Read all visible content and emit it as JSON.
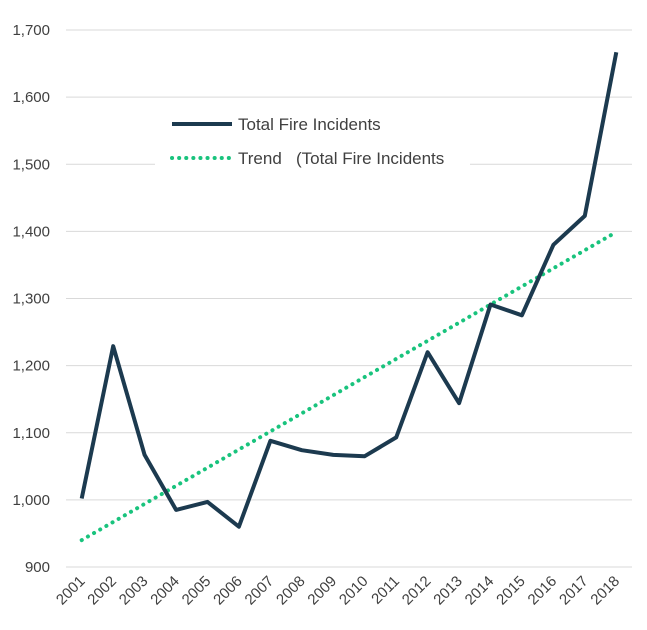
{
  "chart_data": {
    "type": "line",
    "title": "",
    "xlabel": "",
    "ylabel": "",
    "ylim": [
      900,
      1700
    ],
    "yticks": [
      900,
      1000,
      1100,
      1200,
      1300,
      1400,
      1500,
      1600,
      1700
    ],
    "ytick_labels": [
      "900",
      "1,000",
      "1,100",
      "1,200",
      "1,300",
      "1,400",
      "1,500",
      "1,600",
      "1,700"
    ],
    "categories": [
      "2001",
      "2002",
      "2003",
      "2004",
      "2005",
      "2006",
      "2007",
      "2008",
      "2009",
      "2010",
      "2011",
      "2012",
      "2013",
      "2014",
      "2015",
      "2016",
      "2017",
      "2018"
    ],
    "series": [
      {
        "name": "Total Fire Incidents",
        "color": "#1c3a4f",
        "style": "solid",
        "values": [
          1002,
          1229,
          1067,
          985,
          997,
          960,
          1088,
          1074,
          1067,
          1065,
          1093,
          1220,
          1144,
          1291,
          1275,
          1380,
          1423,
          1667
        ]
      },
      {
        "name": "Trend   (Total Fire Incidents",
        "color": "#19c37d",
        "style": "dotted",
        "values": [
          940,
          967,
          994,
          1021,
          1048,
          1075,
          1102,
          1129,
          1156,
          1183,
          1210,
          1237,
          1264,
          1291,
          1318,
          1345,
          1372,
          1399
        ]
      }
    ],
    "legend_position": "top-left inside",
    "grid": "horizontal"
  }
}
